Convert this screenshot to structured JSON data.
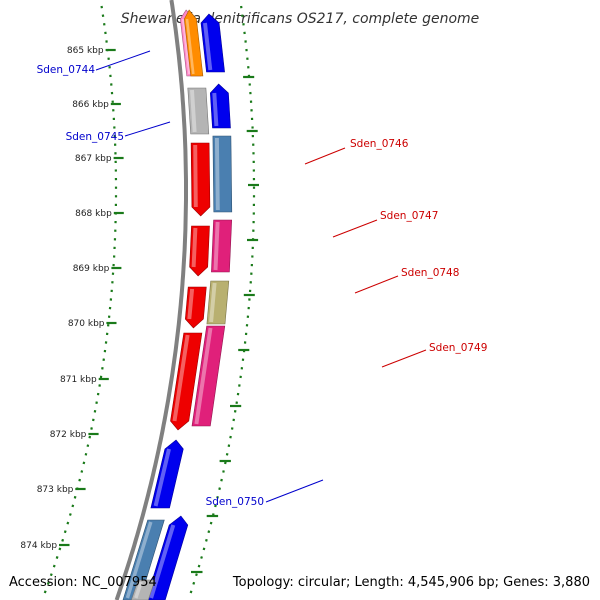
{
  "title": "Shewanella denitrificans OS217, complete genome",
  "footer": {
    "accession": "Accession: NC_007954",
    "topology": "Topology: circular; Length: 4,545,906 bp; Genes: 3,880"
  },
  "ruler": [
    "865 kbp",
    "866 kbp",
    "867 kbp",
    "868 kbp",
    "869 kbp",
    "870 kbp",
    "871 kbp",
    "872 kbp",
    "873 kbp",
    "874 kbp"
  ],
  "gene_labels": [
    {
      "name": "Sden_0744",
      "strand": "reverse",
      "color": "#0000cc"
    },
    {
      "name": "Sden_0745",
      "strand": "reverse",
      "color": "#0000cc"
    },
    {
      "name": "Sden_0746",
      "strand": "forward",
      "color": "#cc0000"
    },
    {
      "name": "Sden_0747",
      "strand": "forward",
      "color": "#cc0000"
    },
    {
      "name": "Sden_0748",
      "strand": "forward",
      "color": "#cc0000"
    },
    {
      "name": "Sden_0749",
      "strand": "forward",
      "color": "#cc0000"
    },
    {
      "name": "Sden_0750",
      "strand": "reverse",
      "color": "#0000cc"
    }
  ],
  "colors": {
    "backbone": "#808080",
    "tick": "#1a7a1a",
    "forward_cds": "#ee0000",
    "reverse_cds": "#0000ee",
    "steelblue": "#4a7fb0",
    "magenta": "#e0207a",
    "khaki": "#b8b070",
    "grey": "#b4b4b4",
    "orange": "#ff8c00",
    "pink": "#ff88c8"
  }
}
